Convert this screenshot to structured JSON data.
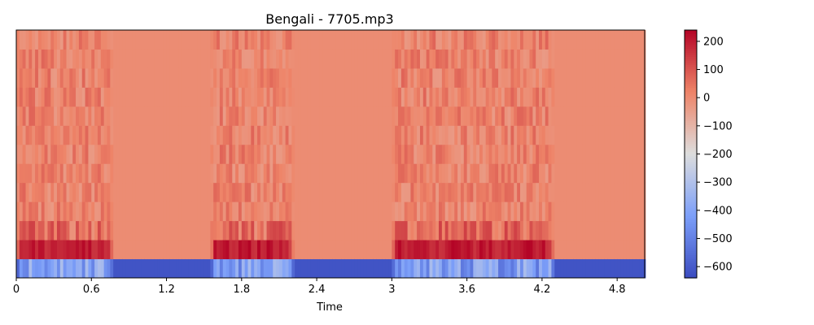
{
  "chart_data": {
    "type": "heatmap",
    "title": "Bengali - 7705.mp3",
    "xlabel": "Time",
    "ylabel": "",
    "xlim": [
      0,
      5.02
    ],
    "x_ticks": [
      0,
      0.6,
      1.2,
      1.8,
      2.4,
      3.0,
      3.6,
      4.2,
      4.8
    ],
    "x_tick_labels": [
      "0",
      "0.6",
      "1.2",
      "1.8",
      "2.4",
      "3",
      "3.6",
      "4.2",
      "4.8"
    ],
    "n_rows": 13,
    "colormap": "coolwarm",
    "colorbar": {
      "range": [
        -640,
        240
      ],
      "ticks": [
        200,
        100,
        0,
        -100,
        -200,
        -300,
        -400,
        -500,
        -600
      ],
      "tick_labels": [
        "200",
        "100",
        "0",
        "−100",
        "−200",
        "−300",
        "−400",
        "−500",
        "−600"
      ]
    },
    "silence_level": 0,
    "voiced_segments": [
      {
        "start": 0.0,
        "end": 0.78
      },
      {
        "start": 1.55,
        "end": 2.22
      },
      {
        "start": 3.0,
        "end": 4.3
      }
    ],
    "active_row_levels": {
      "row_0_mean": -420,
      "row_1_mean": 200,
      "row_2_mean": 60,
      "upper_rows_mean": 20
    }
  }
}
